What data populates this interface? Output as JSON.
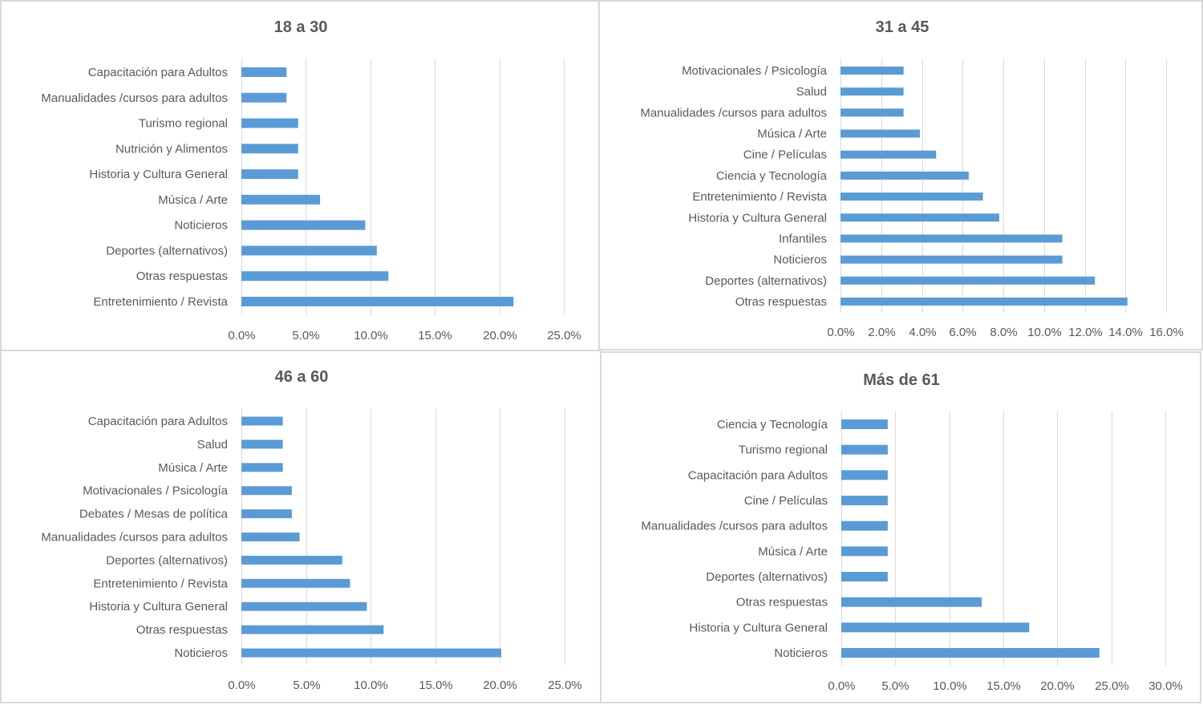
{
  "chart_data": [
    {
      "type": "bar",
      "orientation": "horizontal",
      "title": "18 a 30",
      "xlabel": "",
      "ylabel": "",
      "categories": [
        "Capacitación para Adultos",
        "Manualidades /cursos para adultos",
        "Turismo regional",
        "Nutrición y Alimentos",
        "Historia y Cultura General",
        "Música / Arte",
        "Noticieros",
        "Deportes (alternativos)",
        "Otras respuestas",
        "Entretenimiento / Revista"
      ],
      "values": [
        3.5,
        3.5,
        4.4,
        4.4,
        4.4,
        6.1,
        9.6,
        10.5,
        11.4,
        21.1
      ],
      "unit": "%",
      "xlim": [
        0,
        25
      ],
      "ticks": [
        0,
        5,
        10,
        15,
        20,
        25
      ],
      "tick_labels": [
        "0.0%",
        "5.0%",
        "10.0%",
        "15.0%",
        "20.0%",
        "25.0%"
      ],
      "grid": true,
      "legend": "none",
      "color": "#5b9bd5"
    },
    {
      "type": "bar",
      "orientation": "horizontal",
      "title": "31 a 45",
      "xlabel": "",
      "ylabel": "",
      "categories": [
        "Motivacionales / Psicología",
        "Salud",
        "Manualidades /cursos para adultos",
        "Música / Arte",
        "Cine / Películas",
        "Ciencia y Tecnología",
        "Entretenimiento / Revista",
        "Historia y Cultura General",
        "Infantiles",
        "Noticieros",
        "Deportes (alternativos)",
        "Otras respuestas"
      ],
      "values": [
        3.1,
        3.1,
        3.1,
        3.9,
        4.7,
        6.3,
        7.0,
        7.8,
        10.9,
        10.9,
        12.5,
        14.1
      ],
      "unit": "%",
      "xlim": [
        0,
        16
      ],
      "ticks": [
        0,
        2,
        4,
        6,
        8,
        10,
        12,
        14,
        16
      ],
      "tick_labels": [
        "0.0%",
        "2.0%",
        "4.0%",
        "6.0%",
        "8.0%",
        "10.0%",
        "12.0%",
        "14.0%",
        "16.0%"
      ],
      "grid": true,
      "legend": "none",
      "color": "#5b9bd5"
    },
    {
      "type": "bar",
      "orientation": "horizontal",
      "title": "46 a 60",
      "xlabel": "",
      "ylabel": "",
      "categories": [
        "Capacitación para Adultos",
        "Salud",
        "Música / Arte",
        "Motivacionales / Psicología",
        "Debates / Mesas de política",
        "Manualidades /cursos para adultos",
        "Deportes (alternativos)",
        "Entretenimiento / Revista",
        "Historia y Cultura General",
        "Otras respuestas",
        "Noticieros"
      ],
      "values": [
        3.2,
        3.2,
        3.2,
        3.9,
        3.9,
        4.5,
        7.8,
        8.4,
        9.7,
        11.0,
        20.1
      ],
      "unit": "%",
      "xlim": [
        0,
        25
      ],
      "ticks": [
        0,
        5,
        10,
        15,
        20,
        25
      ],
      "tick_labels": [
        "0.0%",
        "5.0%",
        "10.0%",
        "15.0%",
        "20.0%",
        "25.0%"
      ],
      "grid": true,
      "legend": "none",
      "color": "#5b9bd5"
    },
    {
      "type": "bar",
      "orientation": "horizontal",
      "title": "Más de 61",
      "xlabel": "",
      "ylabel": "",
      "categories": [
        "Ciencia y Tecnología",
        "Turismo regional",
        "Capacitación para Adultos",
        "Cine / Películas",
        "Manualidades /cursos para adultos",
        "Música / Arte",
        "Deportes (alternativos)",
        "Otras respuestas",
        "Historia y Cultura General",
        "Noticieros"
      ],
      "values": [
        4.3,
        4.3,
        4.3,
        4.3,
        4.3,
        4.3,
        4.3,
        13.0,
        17.4,
        23.9
      ],
      "unit": "%",
      "xlim": [
        0,
        30
      ],
      "ticks": [
        0,
        5,
        10,
        15,
        20,
        25,
        30
      ],
      "tick_labels": [
        "0.0%",
        "5.0%",
        "10.0%",
        "15.0%",
        "20.0%",
        "25.0%",
        "30.0%"
      ],
      "grid": true,
      "legend": "none",
      "color": "#5b9bd5"
    }
  ]
}
